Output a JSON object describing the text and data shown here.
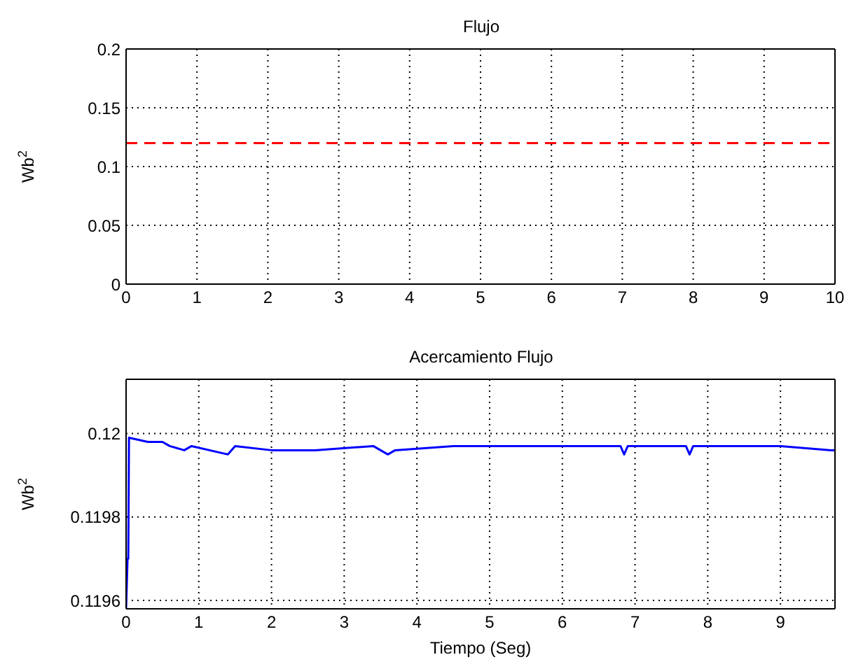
{
  "chart_data": [
    {
      "type": "line",
      "title": "Flujo",
      "ylabel": "Wb$^{2}$",
      "xlim": [
        0,
        10
      ],
      "xticks": [
        0,
        1,
        2,
        3,
        4,
        5,
        6,
        7,
        8,
        9,
        10
      ],
      "ylim": [
        0,
        0.2
      ],
      "yticks": [
        0,
        0.05,
        0.1,
        0.15,
        0.2
      ],
      "grid": true,
      "line_style": "dashed",
      "marker": "none",
      "series": [
        {
          "color": "#ff0000",
          "x": [
            0,
            10
          ],
          "values": [
            0.12,
            0.12
          ]
        }
      ]
    },
    {
      "type": "line",
      "title": "Acercamiento Flujo",
      "xlabel": "Tiempo (Seg)",
      "ylabel": "Wb$^{2}$",
      "xlim": [
        0,
        9.75
      ],
      "xticks": [
        0,
        1,
        2,
        3,
        4,
        5,
        6,
        7,
        8,
        9
      ],
      "ylim": [
        0.11958,
        0.12013
      ],
      "yticks": [
        0.1196,
        0.1198,
        0.12
      ],
      "grid": true,
      "line_style": "solid",
      "marker": "none",
      "series": [
        {
          "color": "#0000ff",
          "x": [
            0,
            0.02,
            0.03,
            0.04,
            0.3,
            0.5,
            0.6,
            0.8,
            0.9,
            1.4,
            1.5,
            2.0,
            2.6,
            3.4,
            3.6,
            3.7,
            4.5,
            6.8,
            6.85,
            6.9,
            7.0,
            7.7,
            7.75,
            7.8,
            8.0,
            9.0,
            9.7,
            9.75
          ],
          "values": [
            0.11958,
            0.1197,
            0.1197,
            0.11999,
            0.11998,
            0.11998,
            0.11997,
            0.11996,
            0.11997,
            0.11995,
            0.11997,
            0.11996,
            0.11996,
            0.11997,
            0.11995,
            0.11996,
            0.11997,
            0.11997,
            0.11995,
            0.11997,
            0.11997,
            0.11997,
            0.11995,
            0.11997,
            0.11997,
            0.11997,
            0.11996,
            0.11996
          ]
        }
      ]
    }
  ]
}
